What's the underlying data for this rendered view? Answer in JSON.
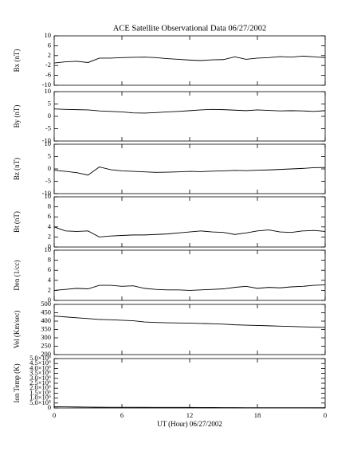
{
  "chart_data": [
    {
      "type": "line",
      "title": "ACE Satellite Observational Data  06/27/2002",
      "ylabel": "Bx (nT)",
      "color": "#000000",
      "x": [
        0,
        1,
        2,
        3,
        4,
        5,
        6,
        7,
        8,
        9,
        10,
        11,
        12,
        13,
        14,
        15,
        16,
        17,
        18,
        19,
        20,
        21,
        22,
        23,
        24
      ],
      "values": [
        -1,
        -0.5,
        -0.3,
        -0.8,
        1,
        1,
        1.2,
        1.3,
        1.4,
        1.2,
        0.8,
        0.5,
        0.2,
        0,
        0.3,
        0.4,
        1.5,
        0.5,
        1,
        1.2,
        1.6,
        1.4,
        1.8,
        1.5,
        1.2
      ],
      "xlim": [
        0,
        24
      ],
      "ylim": [
        -10,
        10
      ],
      "yticks": [
        -10,
        -6,
        -2,
        2,
        6,
        10
      ]
    },
    {
      "type": "line",
      "ylabel": "By (nT)",
      "color": "#000000",
      "x": [
        0,
        1,
        2,
        3,
        4,
        5,
        6,
        7,
        8,
        9,
        10,
        11,
        12,
        13,
        14,
        15,
        16,
        17,
        18,
        19,
        20,
        21,
        22,
        23,
        24
      ],
      "values": [
        3,
        2.8,
        2.7,
        2.6,
        2.2,
        2,
        1.8,
        1.4,
        1.3,
        1.5,
        1.8,
        2,
        2.3,
        2.6,
        2.8,
        2.7,
        2.5,
        2.3,
        2.6,
        2.4,
        2.2,
        2.3,
        2.2,
        2,
        2.3
      ],
      "xlim": [
        0,
        24
      ],
      "ylim": [
        -10,
        10
      ],
      "yticks": [
        -10,
        -5,
        0,
        5,
        10
      ]
    },
    {
      "type": "line",
      "ylabel": "Bz (nT)",
      "color": "#000000",
      "x": [
        0,
        1,
        2,
        3,
        4,
        5,
        6,
        7,
        8,
        9,
        10,
        11,
        12,
        13,
        14,
        15,
        16,
        17,
        18,
        19,
        20,
        21,
        22,
        23,
        24
      ],
      "values": [
        -0.5,
        -1,
        -1.5,
        -2.5,
        0.8,
        -0.3,
        -0.8,
        -1,
        -1.2,
        -1.4,
        -1.3,
        -1.2,
        -1,
        -1.1,
        -0.9,
        -0.8,
        -0.6,
        -0.7,
        -0.5,
        -0.4,
        -0.2,
        0,
        0.2,
        0.5,
        0.6
      ],
      "xlim": [
        0,
        24
      ],
      "ylim": [
        -10,
        10
      ],
      "yticks": [
        -10,
        -5,
        0,
        5,
        10
      ]
    },
    {
      "type": "line",
      "ylabel": "Bt (nT)",
      "color": "#000000",
      "x": [
        0,
        1,
        2,
        3,
        4,
        5,
        6,
        7,
        8,
        9,
        10,
        11,
        12,
        13,
        14,
        15,
        16,
        17,
        18,
        19,
        20,
        21,
        22,
        23,
        24
      ],
      "values": [
        4,
        3.2,
        3.1,
        3.2,
        2,
        2.2,
        2.3,
        2.4,
        2.4,
        2.5,
        2.6,
        2.8,
        3,
        3.2,
        3,
        2.9,
        2.5,
        2.8,
        3.2,
        3.4,
        3,
        2.9,
        3.2,
        3.3,
        3.1
      ],
      "xlim": [
        0,
        24
      ],
      "ylim": [
        0,
        10
      ],
      "yticks": [
        0,
        2,
        4,
        6,
        8,
        10
      ]
    },
    {
      "type": "line",
      "ylabel": "Den (1/cc)",
      "color": "#000000",
      "x": [
        0,
        1,
        2,
        3,
        4,
        5,
        6,
        7,
        8,
        9,
        10,
        11,
        12,
        13,
        14,
        15,
        16,
        17,
        18,
        19,
        20,
        21,
        22,
        23,
        24
      ],
      "values": [
        2,
        2.2,
        2.4,
        2.3,
        3,
        3,
        2.8,
        2.9,
        2.4,
        2.2,
        2.1,
        2.1,
        2,
        2.1,
        2.2,
        2.3,
        2.6,
        2.8,
        2.4,
        2.6,
        2.5,
        2.7,
        2.8,
        3,
        3.1
      ],
      "xlim": [
        0,
        24
      ],
      "ylim": [
        0,
        10
      ],
      "yticks": [
        0,
        2,
        4,
        6,
        8,
        10
      ]
    },
    {
      "type": "line",
      "ylabel": "Vel (Km/sec)",
      "color": "#000000",
      "x": [
        0,
        1,
        2,
        3,
        4,
        5,
        6,
        7,
        8,
        9,
        10,
        11,
        12,
        13,
        14,
        15,
        16,
        17,
        18,
        19,
        20,
        21,
        22,
        23,
        24
      ],
      "values": [
        430,
        425,
        420,
        415,
        410,
        408,
        405,
        402,
        395,
        392,
        390,
        389,
        388,
        386,
        384,
        382,
        378,
        376,
        374,
        372,
        370,
        368,
        366,
        364,
        362
      ],
      "xlim": [
        0,
        24
      ],
      "ylim": [
        200,
        500
      ],
      "yticks": [
        200,
        250,
        300,
        350,
        400,
        450,
        500
      ]
    },
    {
      "type": "line",
      "ylabel": "Ion Temp (K)",
      "xlabel": "UT (Hour)  06/27/2002",
      "color": "#000000",
      "x": [
        0,
        1,
        2,
        3,
        4,
        5,
        6,
        7,
        8,
        9,
        10,
        11,
        12,
        13,
        14,
        15,
        16,
        17,
        18,
        19,
        20,
        21,
        22,
        23,
        24
      ],
      "values": [
        120000,
        115000,
        100000,
        85000,
        70000,
        68000,
        65000,
        62000,
        60000,
        57000,
        55000,
        52000,
        50000,
        45000,
        40000,
        35000,
        30000,
        28000,
        27000,
        26000,
        25000,
        23000,
        22000,
        21000,
        20000
      ],
      "xlim": [
        0,
        24
      ],
      "ylim": [
        0,
        5000000
      ],
      "yticks": [
        0,
        {
          "value": 500000,
          "label": "5.0×10⁵"
        },
        {
          "value": 1000000,
          "label": "1.0×10⁶"
        },
        {
          "value": 1500000,
          "label": "1.5×10⁶"
        },
        {
          "value": 2000000,
          "label": "2.0×10⁶"
        },
        {
          "value": 2500000,
          "label": "2.5×10⁶"
        },
        {
          "value": 3000000,
          "label": "3.0×10⁶"
        },
        {
          "value": 3500000,
          "label": "3.5×10⁶"
        },
        {
          "value": 4000000,
          "label": "4.0×10⁶"
        },
        {
          "value": 4500000,
          "label": "4.5×10⁶"
        },
        {
          "value": 5000000,
          "label": "5.0×10⁶"
        }
      ],
      "xticks": [
        0,
        6,
        12,
        18,
        {
          "value": 24,
          "label": "0"
        }
      ]
    }
  ]
}
